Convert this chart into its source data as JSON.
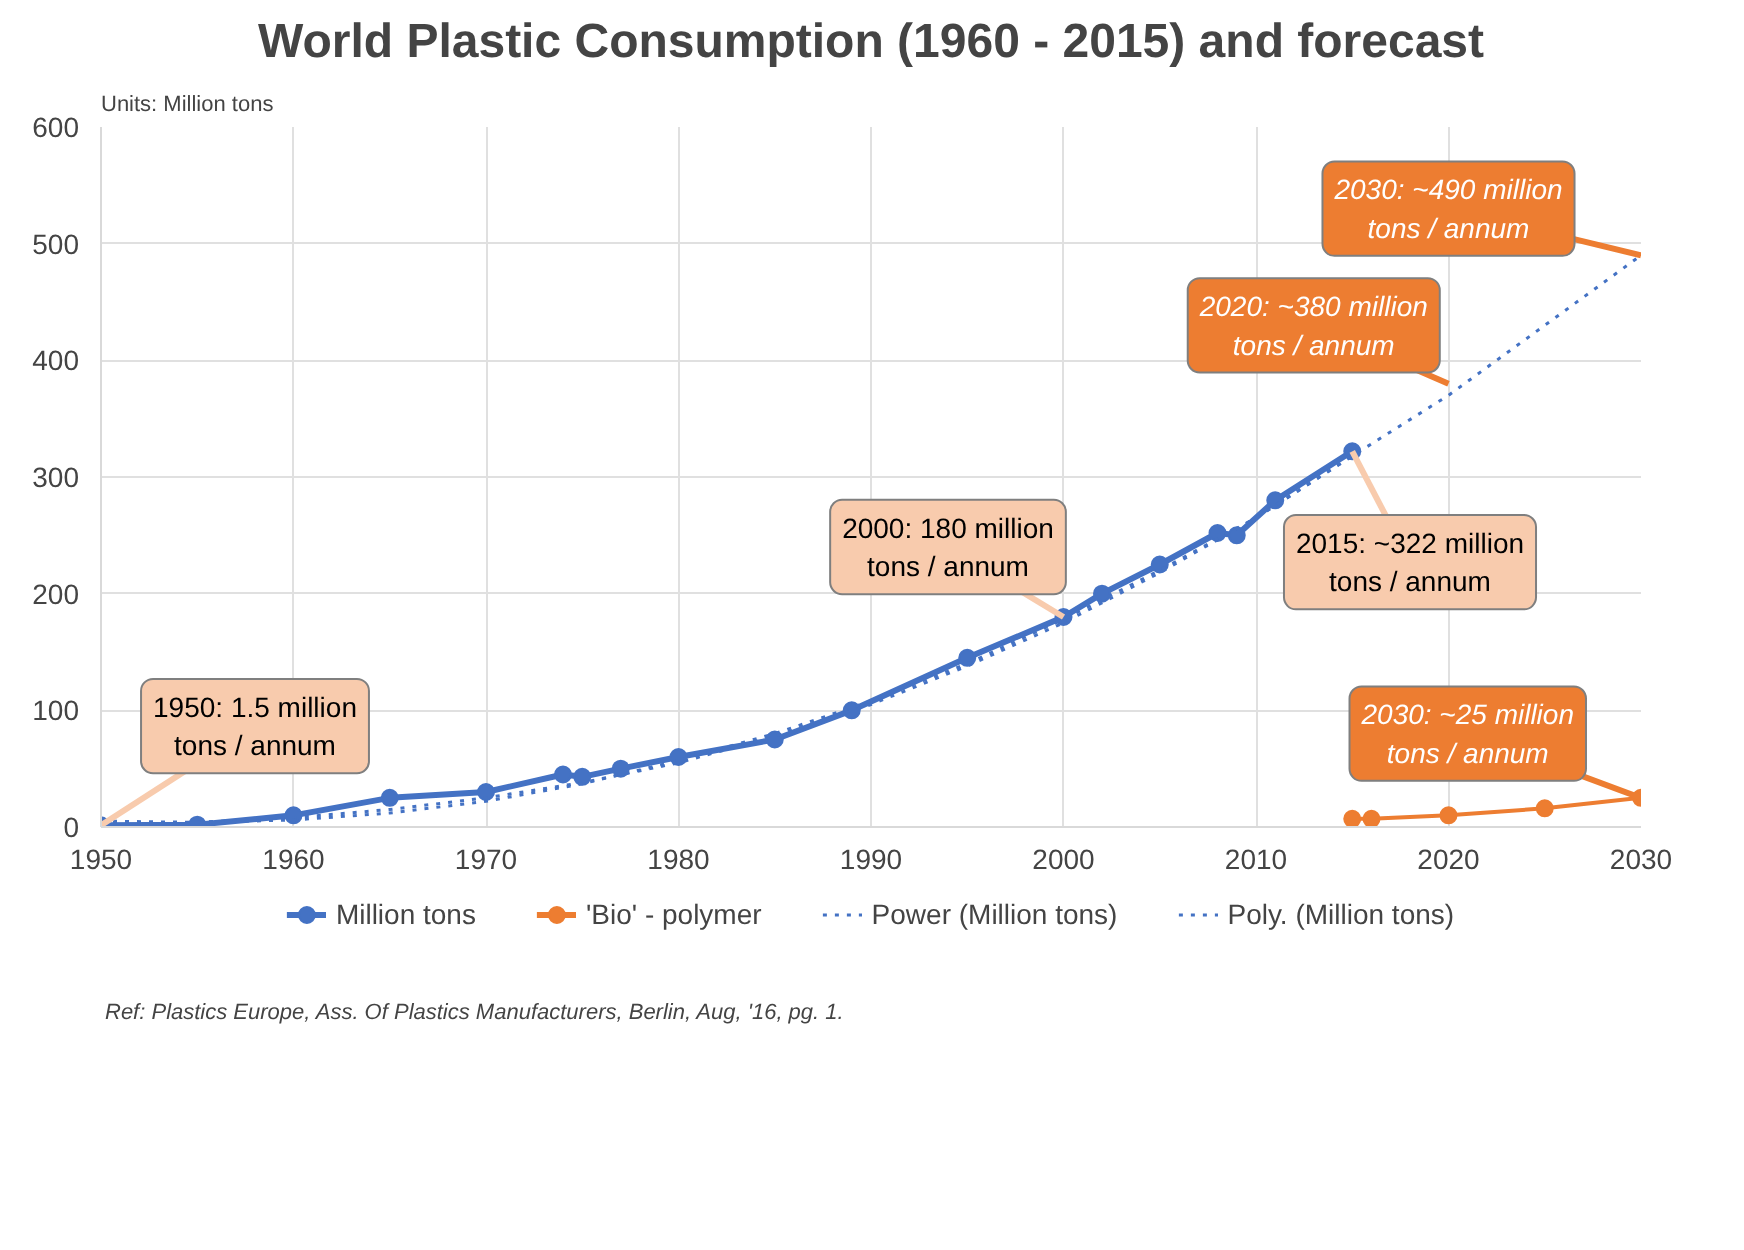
{
  "chart_data": {
    "type": "line",
    "title": "World Plastic Consumption (1960 - 2015) and forecast",
    "subtitle": "Units: Million tons",
    "xlim": [
      1950,
      2030
    ],
    "xticks": [
      1950,
      1960,
      1970,
      1980,
      1990,
      2000,
      2010,
      2020,
      2030
    ],
    "ylim": [
      0,
      600
    ],
    "yticks": [
      0,
      100,
      200,
      300,
      400,
      500,
      600
    ],
    "grid": true,
    "legend": "bottom",
    "series": [
      {
        "name": "Million tons",
        "color": "#4472c4",
        "marker": "circle",
        "line_style": "solid",
        "x": [
          1950,
          1955,
          1960,
          1965,
          1970,
          1974,
          1975,
          1977,
          1980,
          1985,
          1989,
          1995,
          2000,
          2002,
          2005,
          2008,
          2009,
          2011,
          2015
        ],
        "values": [
          1.5,
          2,
          10,
          25,
          30,
          45,
          43,
          50,
          60,
          75,
          100,
          145,
          180,
          200,
          225,
          252,
          250,
          280,
          322
        ]
      },
      {
        "name": "'Bio' - polymer",
        "color": "#ed7d31",
        "marker": "circle",
        "line_style": "solid",
        "x": [
          2015,
          2016,
          2020,
          2025,
          2030
        ],
        "values": [
          7,
          7,
          10,
          16,
          25
        ]
      },
      {
        "name": "Power (Million tons)",
        "color": "#4472c4",
        "marker": "none",
        "line_style": "dotted",
        "x": [
          1950,
          1955,
          1960,
          1965,
          1970,
          1975,
          1980,
          1985,
          1990,
          1995,
          2000,
          2005,
          2010,
          2015,
          2020,
          2025,
          2030
        ],
        "values": [
          3,
          4,
          8,
          15,
          25,
          38,
          55,
          78,
          105,
          138,
          175,
          218,
          265,
          318,
          370,
          430,
          490
        ]
      },
      {
        "name": "Poly. (Million tons)",
        "color": "#4472c4",
        "marker": "none",
        "line_style": "dotted",
        "x": [
          1950,
          1955,
          1960,
          1965,
          1970,
          1975,
          1980,
          1985,
          1990,
          1995,
          2000,
          2005,
          2010,
          2015
        ],
        "values": [
          5,
          4,
          6,
          12,
          22,
          37,
          57,
          80,
          108,
          140,
          178,
          220,
          265,
          318
        ]
      }
    ],
    "annotations": [
      {
        "text": "1950: 1.5 million\ntons / annum",
        "x": 1950,
        "y": 1.5
      },
      {
        "text": "2000: 180 million\ntons / annum",
        "x": 2000,
        "y": 180
      },
      {
        "text": "2015: ~322 million\ntons / annum",
        "x": 2015,
        "y": 322
      },
      {
        "text": "2020: ~380 million\ntons / annum",
        "x": 2020,
        "y": 380
      },
      {
        "text": "2030: ~490 million\ntons / annum",
        "x": 2030,
        "y": 490
      },
      {
        "text": "2030: ~25 million\ntons / annum",
        "x": 2030,
        "y": 25
      },
      "Ref: Plastics Europe, Ass. Of Plastics Manufacturers, Berlin, Aug, '16, pg. 1."
    ]
  }
}
